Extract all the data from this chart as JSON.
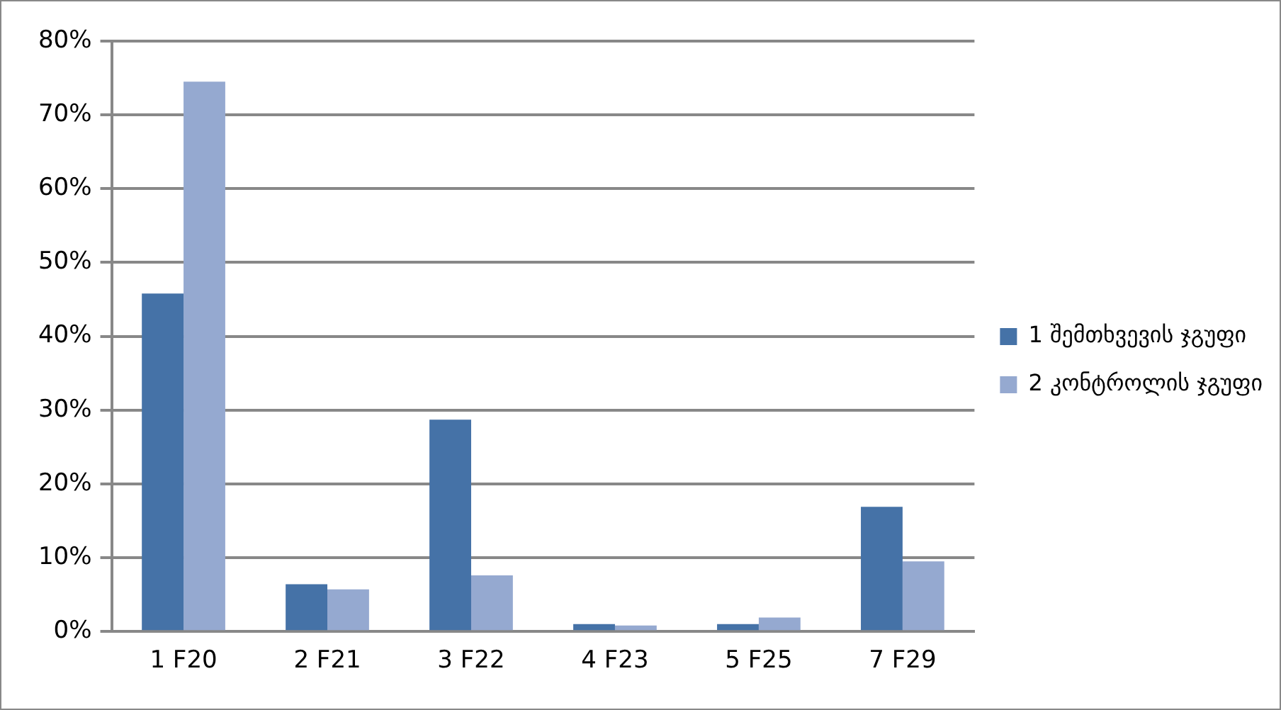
{
  "chart_data": {
    "type": "bar",
    "categories": [
      "1 F20",
      "2 F21",
      "3 F22",
      "4 F23",
      "5 F25",
      "7 F29"
    ],
    "series": [
      {
        "name": "1 შემთხვევის ჯგუფი",
        "color": "#4572a7",
        "values": [
          45.8,
          6.4,
          28.7,
          1.0,
          1.0,
          16.9
        ]
      },
      {
        "name": "2 კონტროლის ჯგუფი",
        "color": "#95a9d0",
        "values": [
          74.5,
          5.7,
          7.6,
          0.8,
          1.9,
          9.5
        ]
      }
    ],
    "ylim": [
      0,
      80
    ],
    "yticks": [
      {
        "value": 0,
        "label": "0%"
      },
      {
        "value": 10,
        "label": "10%"
      },
      {
        "value": 20,
        "label": "20%"
      },
      {
        "value": 30,
        "label": "30%"
      },
      {
        "value": 40,
        "label": "40%"
      },
      {
        "value": 50,
        "label": "50%"
      },
      {
        "value": 60,
        "label": "60%"
      },
      {
        "value": 70,
        "label": "70%"
      },
      {
        "value": 80,
        "label": "80%"
      }
    ],
    "grid": "y",
    "legend": "right"
  }
}
